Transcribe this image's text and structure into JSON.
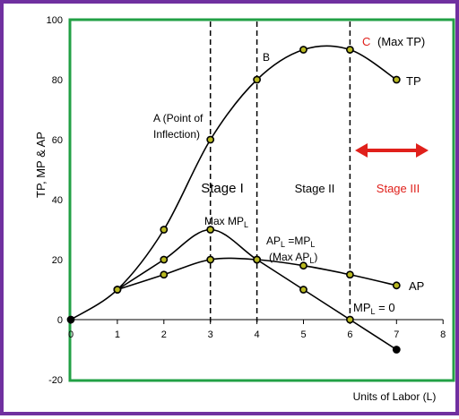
{
  "chart_data": {
    "type": "line",
    "xlabel": "Units of Labor (L)",
    "ylabel": "TP, MP & AP",
    "xlim": [
      0,
      8
    ],
    "ylim": [
      -20,
      100
    ],
    "x_ticks": [
      0,
      1,
      2,
      3,
      4,
      5,
      6,
      7,
      8
    ],
    "y_ticks": [
      -20,
      0,
      20,
      40,
      60,
      80,
      100
    ],
    "grid": false,
    "series": [
      {
        "name": "TP",
        "x": [
          0,
          1,
          2,
          3,
          4,
          5,
          6,
          7
        ],
        "y": [
          0,
          10,
          30,
          60,
          80,
          90,
          90,
          80
        ]
      },
      {
        "name": "MP",
        "x": [
          1,
          2,
          3,
          4,
          5,
          6,
          7
        ],
        "y": [
          10,
          20,
          30,
          20,
          10,
          0,
          -10
        ]
      },
      {
        "name": "AP",
        "x": [
          1,
          2,
          3,
          4,
          5,
          6,
          7
        ],
        "y": [
          10,
          15,
          20,
          20,
          18,
          15,
          11.4
        ]
      }
    ],
    "vertical_lines": [
      3,
      4,
      6
    ],
    "annotations": {
      "point_a": "A (Point of Inflection)",
      "point_b": "B",
      "point_c_letter": "C",
      "point_c_text": "(Max TP)",
      "stage1": "Stage I",
      "stage2": "Stage II",
      "stage3": "Stage III",
      "max_mp": "Max MPL",
      "ap_eq_mp": "APL =MPL",
      "max_ap": "(Max APL)",
      "mp_zero": "MPL = 0",
      "tp_label": "TP",
      "ap_label": "AP"
    },
    "colors": {
      "frame": "#7030a0",
      "plot_border": "#22a045",
      "point_c": "#e0201b",
      "stage3": "#e0201b",
      "arrow": "#e0201b",
      "marker_fill": "#b8b820"
    }
  }
}
